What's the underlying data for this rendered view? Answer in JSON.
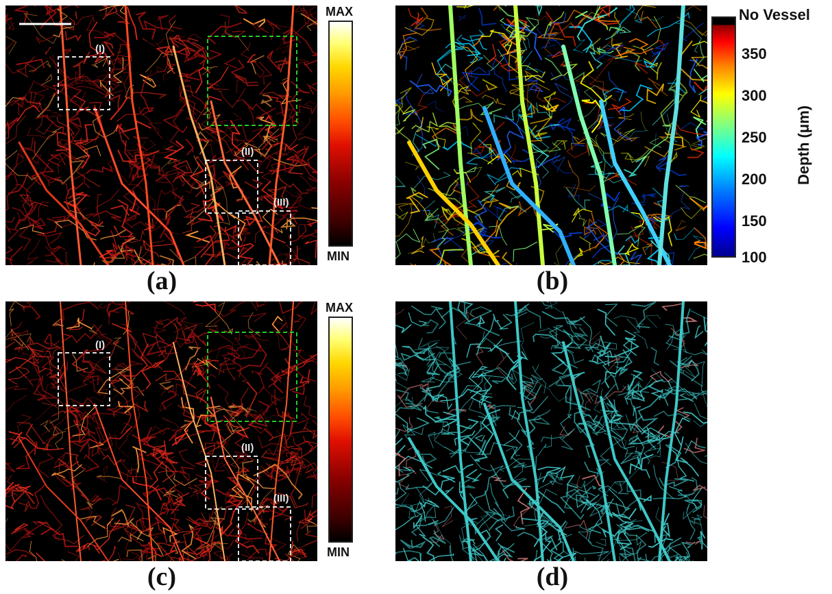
{
  "panels": [
    {
      "id": "a",
      "label": "(a)",
      "rois": [
        "(I)",
        "(II)",
        "(III)"
      ]
    },
    {
      "id": "b",
      "label": "(b)"
    },
    {
      "id": "c",
      "label": "(c)",
      "rois": [
        "(I)",
        "(II)",
        "(III)"
      ]
    },
    {
      "id": "d",
      "label": "(d)"
    }
  ],
  "intensity_colorbar": {
    "max_label": "MAX",
    "min_label": "MIN",
    "colormap": "hot"
  },
  "depth_colorbar": {
    "colormap": "jet",
    "top_label": "No Vessel",
    "ticks": [
      "350",
      "300",
      "250",
      "200",
      "150",
      "100"
    ],
    "title": "Depth (μm)"
  },
  "colors": {
    "roi_white": "#e0e0e0",
    "roi_green": "#22cc22",
    "vessel_cyan": "#3ec7c7"
  }
}
